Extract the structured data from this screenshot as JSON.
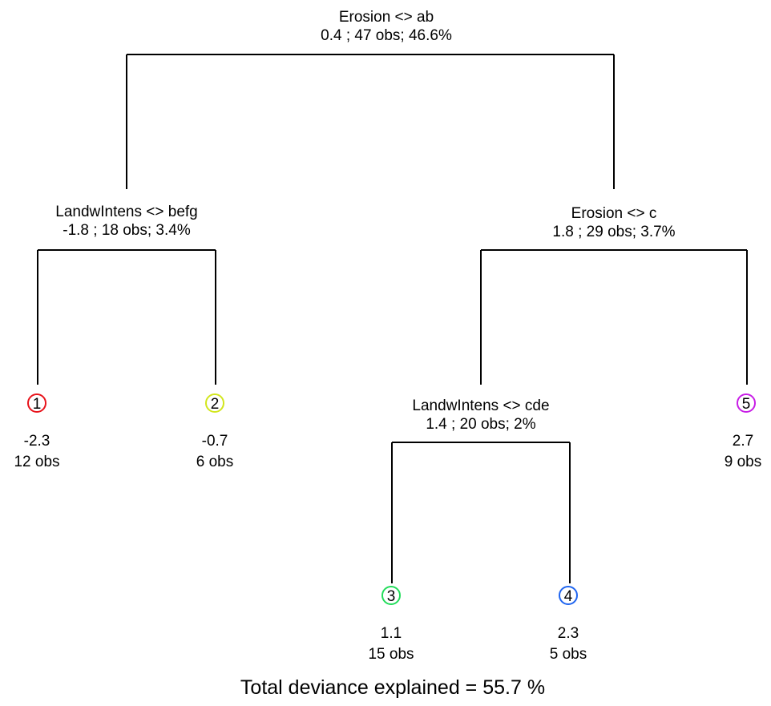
{
  "splits": {
    "root": {
      "label": "Erosion <> ab",
      "stats": "0.4 ; 47 obs; 46.6%"
    },
    "left": {
      "label": "LandwIntens <> befg",
      "stats": "-1.8 ; 18 obs; 3.4%"
    },
    "right": {
      "label": "Erosion <> c",
      "stats": "1.8 ; 29 obs; 3.7%"
    },
    "right_left": {
      "label": "LandwIntens <> cde",
      "stats": "1.4 ; 20 obs; 2%"
    }
  },
  "leaves": [
    {
      "id": "1",
      "value": "-2.3",
      "obs": "12 obs",
      "color": "#e8141c"
    },
    {
      "id": "2",
      "value": "-0.7",
      "obs": "6 obs",
      "color": "#d2e61e"
    },
    {
      "id": "3",
      "value": "1.1",
      "obs": "15 obs",
      "color": "#22dc5a"
    },
    {
      "id": "4",
      "value": "2.3",
      "obs": "5 obs",
      "color": "#1e64f0"
    },
    {
      "id": "5",
      "value": "2.7",
      "obs": "9 obs",
      "color": "#c81ee6"
    }
  ],
  "footer": "Total deviance explained = 55.7 %"
}
